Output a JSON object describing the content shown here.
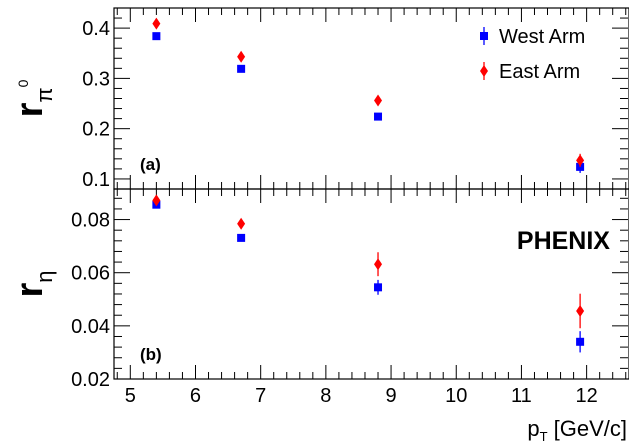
{
  "chart_data": {
    "type": "scatter",
    "experiment_label": "PHENIX",
    "x_axis": {
      "label_main": "p",
      "label_sub": "T",
      "label_unit": " [GeV/c]",
      "range": [
        4.75,
        12.65
      ],
      "ticks": [
        "5",
        "6",
        "7",
        "8",
        "9",
        "10",
        "11",
        "12"
      ]
    },
    "legend": {
      "placement": "top-right",
      "entries": [
        "West Arm",
        "East Arm"
      ]
    },
    "colors": {
      "West Arm": "#0000ff",
      "East Arm": "#ff0000"
    },
    "panels": [
      {
        "tag": "(a)",
        "ylabel_main": "r",
        "ylabel_sub": "π",
        "ylabel_sup": "0",
        "ylim": [
          0.08,
          0.44
        ],
        "yticks": [
          "0.1",
          "0.2",
          "0.3",
          "0.4"
        ],
        "series": [
          {
            "name": "West Arm",
            "marker": "square",
            "points": [
              {
                "x": 5.4,
                "y": 0.384,
                "err": 0.003
              },
              {
                "x": 6.7,
                "y": 0.319,
                "err": 0.003
              },
              {
                "x": 8.8,
                "y": 0.224,
                "err": 0.005
              },
              {
                "x": 11.9,
                "y": 0.124,
                "err": 0.012
              }
            ]
          },
          {
            "name": "East Arm",
            "marker": "diamond",
            "points": [
              {
                "x": 5.4,
                "y": 0.409,
                "err": 0.003
              },
              {
                "x": 6.7,
                "y": 0.343,
                "err": 0.004
              },
              {
                "x": 8.8,
                "y": 0.256,
                "err": 0.008
              },
              {
                "x": 11.9,
                "y": 0.137,
                "err": 0.013
              }
            ]
          }
        ]
      },
      {
        "tag": "(b)",
        "ylabel_main": "r",
        "ylabel_sub": "η",
        "ylabel_sup": "",
        "ylim": [
          0.02,
          0.0915
        ],
        "yticks": [
          "0.02",
          "0.04",
          "0.06",
          "0.08"
        ],
        "series": [
          {
            "name": "West Arm",
            "marker": "square",
            "points": [
              {
                "x": 5.4,
                "y": 0.0856,
                "err": 0.0006
              },
              {
                "x": 6.7,
                "y": 0.0731,
                "err": 0.0007
              },
              {
                "x": 8.8,
                "y": 0.0545,
                "err": 0.0028
              },
              {
                "x": 11.9,
                "y": 0.034,
                "err": 0.004
              }
            ]
          },
          {
            "name": "East Arm",
            "marker": "diamond",
            "points": [
              {
                "x": 5.4,
                "y": 0.0872,
                "err": 0.0008
              },
              {
                "x": 6.7,
                "y": 0.0784,
                "err": 0.001
              },
              {
                "x": 8.8,
                "y": 0.0632,
                "err": 0.0045
              },
              {
                "x": 11.9,
                "y": 0.0456,
                "err": 0.0065
              }
            ]
          }
        ]
      }
    ]
  }
}
